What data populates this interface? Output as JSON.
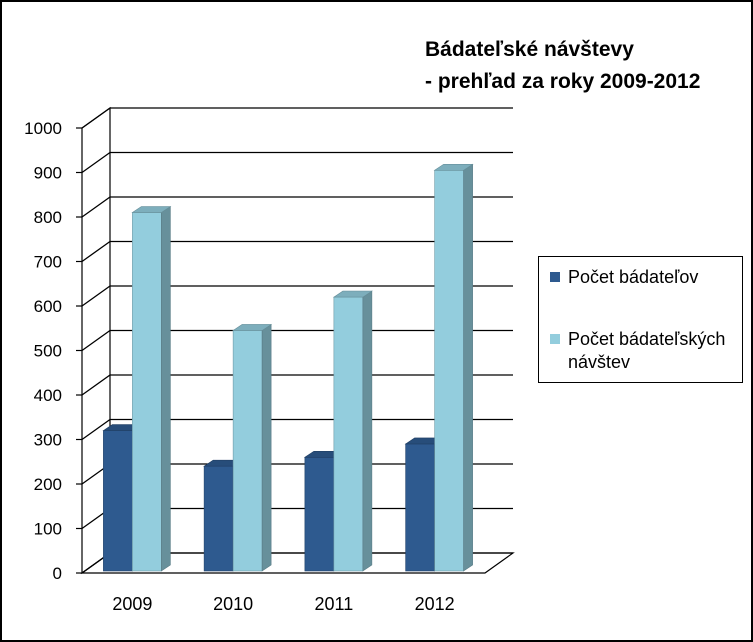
{
  "chart_data": {
    "type": "bar",
    "title_lines": [
      "Bádateľské návštevy",
      "- prehľad za roky 2009-2012"
    ],
    "categories": [
      "2009",
      "2010",
      "2011",
      "2012"
    ],
    "series": [
      {
        "name": "Počet bádateľov",
        "values": [
          320,
          240,
          260,
          290
        ],
        "color": "#2e5a8f"
      },
      {
        "name": "Počet bádateľských návštev",
        "values": [
          810,
          545,
          620,
          905
        ],
        "color": "#93cddd"
      }
    ],
    "y_ticks": [
      "0",
      "100",
      "200",
      "300",
      "400",
      "500",
      "600",
      "700",
      "800",
      "900",
      "1000"
    ],
    "ylim": [
      0,
      1000
    ],
    "grid": true,
    "legend_position": "right",
    "style": "3d-clustered-column"
  }
}
